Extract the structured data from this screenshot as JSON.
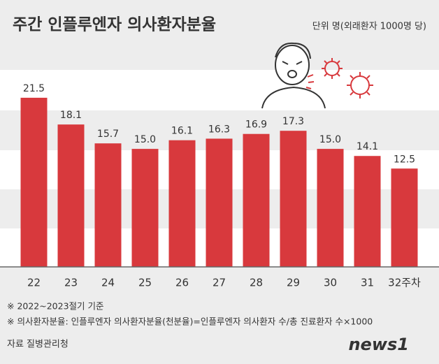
{
  "chart_data": {
    "type": "bar",
    "title": "주간 인플루엔자 의사환자분율",
    "subtitle": "단위 명(외래환자 1000명 당)",
    "categories": [
      "22",
      "23",
      "24",
      "25",
      "26",
      "27",
      "28",
      "29",
      "30",
      "31",
      "32주차"
    ],
    "values": [
      21.5,
      18.1,
      15.7,
      15.0,
      16.1,
      16.3,
      16.9,
      17.3,
      15.0,
      14.1,
      12.5
    ],
    "value_labels": [
      "21.5",
      "18.1",
      "15.7",
      "15.0",
      "16.1",
      "16.3",
      "16.9",
      "17.3",
      "15.0",
      "14.1",
      "12.5"
    ],
    "color": "#d8393d",
    "ylim": [
      0,
      25
    ],
    "notes": [
      "※ 2022~2023절기 기준",
      "※ 의사환자분율: 인플루엔자 의사환자분율(천분율)=인플루엔자 의사환자 수/총 진료환자 수×1000"
    ],
    "source": "자료 질병관리청",
    "logo": "news1"
  }
}
